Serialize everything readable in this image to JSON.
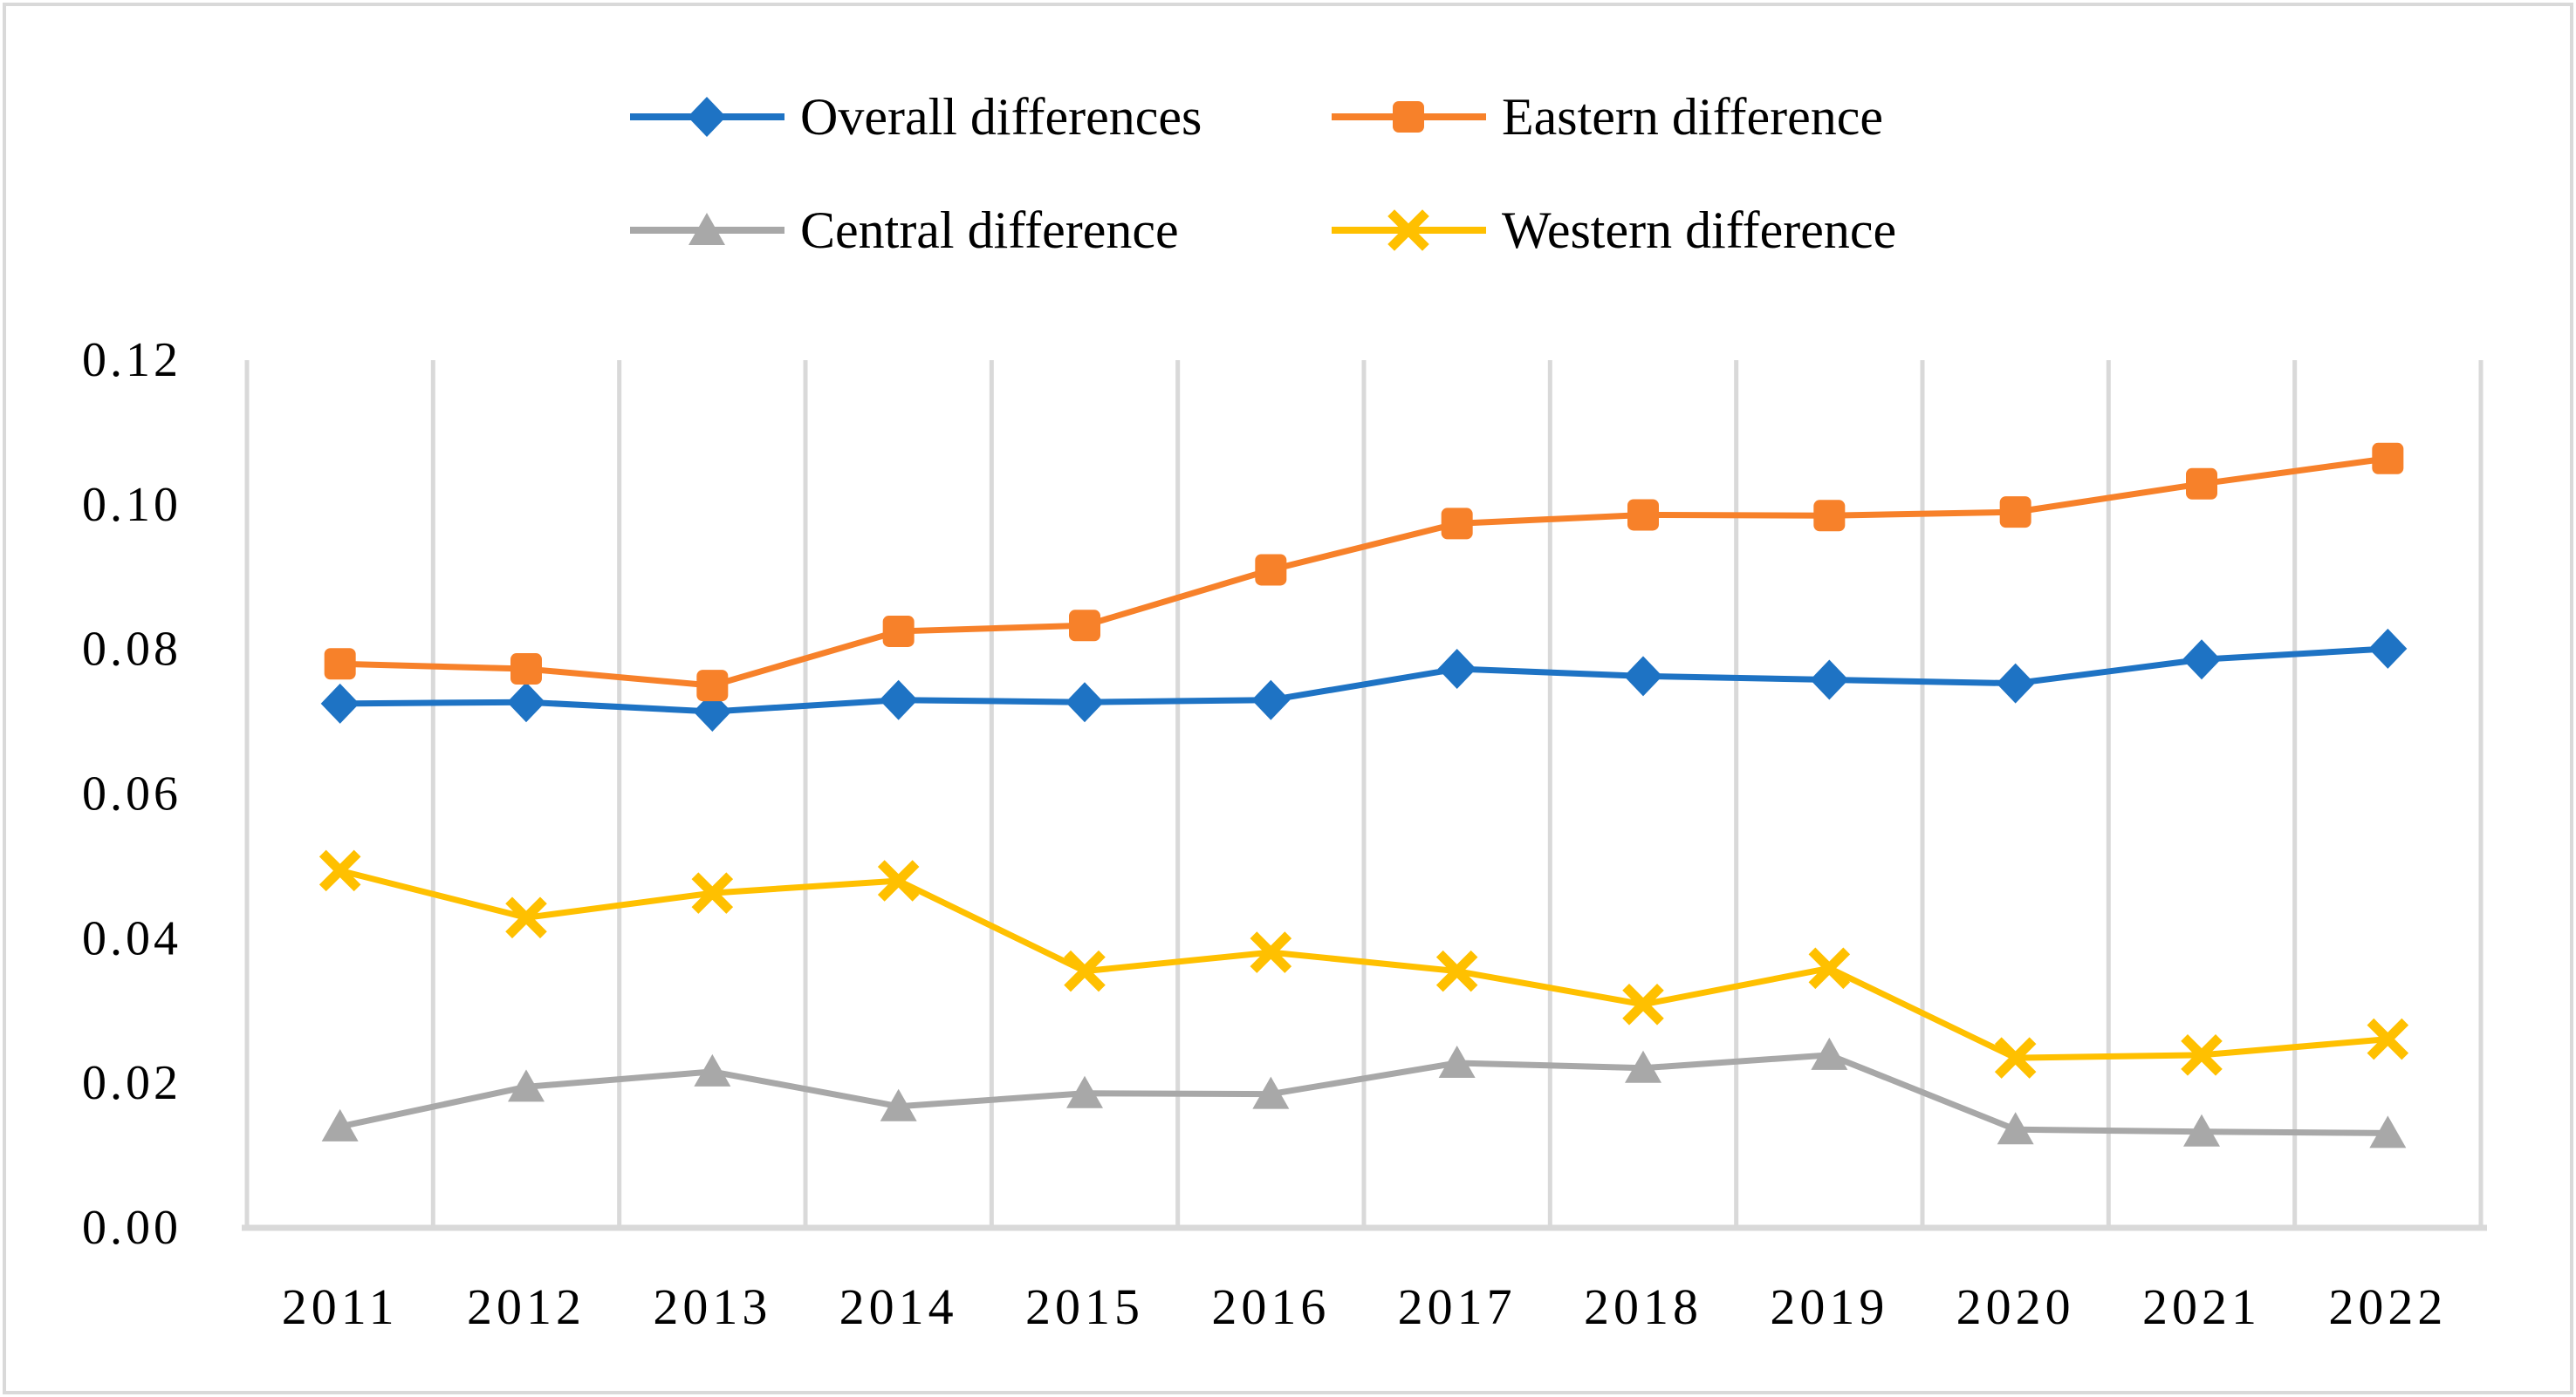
{
  "figure": {
    "background": "#FFFFFF",
    "border_color": "#D9D9D9"
  },
  "chart_data": {
    "type": "line",
    "title": "",
    "xlabel": "",
    "ylabel": "",
    "x": [
      "2011",
      "2012",
      "2013",
      "2014",
      "2015",
      "2016",
      "2017",
      "2018",
      "2019",
      "2020",
      "2021",
      "2022"
    ],
    "series": [
      {
        "name": "Overall differences",
        "color": "#1E73C4",
        "marker": "diamond",
        "values": [
          0.0725,
          0.0727,
          0.0714,
          0.073,
          0.0727,
          0.073,
          0.0773,
          0.0763,
          0.0758,
          0.0753,
          0.0786,
          0.0801
        ]
      },
      {
        "name": "Eastern difference",
        "color": "#F7812A",
        "marker": "square",
        "values": [
          0.078,
          0.0773,
          0.075,
          0.0825,
          0.0833,
          0.091,
          0.0974,
          0.0986,
          0.0985,
          0.099,
          0.1029,
          0.1064
        ]
      },
      {
        "name": "Central difference",
        "color": "#A8A8A8",
        "marker": "triangle",
        "values": [
          0.014,
          0.0195,
          0.0216,
          0.0168,
          0.0186,
          0.0185,
          0.0228,
          0.0221,
          0.0239,
          0.0136,
          0.0133,
          0.0131
        ]
      },
      {
        "name": "Western difference",
        "color": "#FFC000",
        "marker": "x",
        "values": [
          0.0494,
          0.0429,
          0.0463,
          0.048,
          0.0355,
          0.0381,
          0.0355,
          0.0309,
          0.0359,
          0.0235,
          0.0239,
          0.0261
        ]
      }
    ],
    "ylim": [
      0,
      0.12
    ],
    "ytick_labels": [
      "0.00",
      "0.02",
      "0.04",
      "0.06",
      "0.08",
      "0.10",
      "0.12"
    ],
    "grid": "vertical-only",
    "gridline_color": "#D9D9D9",
    "legend_position": "top-center-two-rows"
  }
}
